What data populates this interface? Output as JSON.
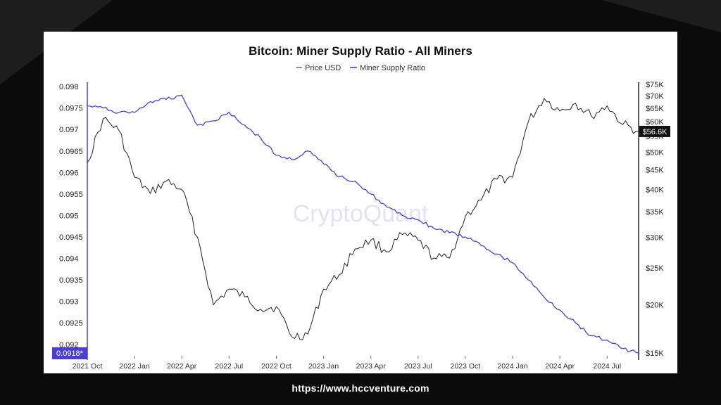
{
  "footer": {
    "url": "https://www.hccventure.com"
  },
  "watermark": "CryptoQuant",
  "colors": {
    "price": "#222222",
    "ratio": "#4b3fd0",
    "grid": "#e5e5e5",
    "background": "#0b0b0b"
  },
  "chart_data": {
    "type": "line",
    "title": "Bitcoin: Miner Supply Ratio - All Miners",
    "legend": [
      "Price USD",
      "Miner Supply Ratio"
    ],
    "legend_position": "top-center",
    "grid": false,
    "x_ticks": [
      "2021 Oct",
      "2022 Jan",
      "2022 Apr",
      "2022 Jul",
      "2022 Oct",
      "2023 Jan",
      "2023 Apr",
      "2023 Jul",
      "2023 Oct",
      "2024 Jan",
      "2024 Apr",
      "2024 Jul"
    ],
    "y_left_ticks": [
      "0.098",
      "0.0975",
      "0.097",
      "0.0965",
      "0.096",
      "0.0955",
      "0.095",
      "0.0945",
      "0.094",
      "0.0935",
      "0.093",
      "0.0925",
      "0.092"
    ],
    "y_left_range": [
      0.0918,
      0.0981
    ],
    "y_right_ticks": [
      "$75K",
      "$70K",
      "$65K",
      "$60K",
      "$55K",
      "$50K",
      "$45K",
      "$40K",
      "$35K",
      "$30K",
      "$25K",
      "$20K",
      "$15K"
    ],
    "y_right_scale": "log",
    "y_right_range": [
      15000,
      76000
    ],
    "current_labels": {
      "price": "$56.6K",
      "ratio": "0.0918*"
    },
    "series": [
      {
        "name": "Price USD",
        "axis": "right",
        "points": [
          [
            "2021 Oct",
            47000
          ],
          [
            "2021 Nov",
            61000
          ],
          [
            "2021 Dec",
            57000
          ],
          [
            "2022 Jan",
            43000
          ],
          [
            "2022 Feb",
            39000
          ],
          [
            "2022 Mar",
            42000
          ],
          [
            "2022 Apr",
            40000
          ],
          [
            "2022 May",
            30000
          ],
          [
            "2022 Jun",
            20000
          ],
          [
            "2022 Jul",
            22000
          ],
          [
            "2022 Aug",
            21000
          ],
          [
            "2022 Sep",
            19500
          ],
          [
            "2022 Oct",
            19800
          ],
          [
            "2022 Nov",
            16500
          ],
          [
            "2022 Dec",
            16800
          ],
          [
            "2023 Jan",
            22000
          ],
          [
            "2023 Feb",
            24000
          ],
          [
            "2023 Mar",
            28000
          ],
          [
            "2023 Apr",
            29500
          ],
          [
            "2023 May",
            27500
          ],
          [
            "2023 Jun",
            30500
          ],
          [
            "2023 Jul",
            29500
          ],
          [
            "2023 Aug",
            26500
          ],
          [
            "2023 Sep",
            26500
          ],
          [
            "2023 Oct",
            34000
          ],
          [
            "2023 Nov",
            37500
          ],
          [
            "2023 Dec",
            42500
          ],
          [
            "2024 Jan",
            43000
          ],
          [
            "2024 Feb",
            60000
          ],
          [
            "2024 Mar",
            69000
          ],
          [
            "2024 Apr",
            64000
          ],
          [
            "2024 May",
            67000
          ],
          [
            "2024 Jun",
            62000
          ],
          [
            "2024 Jul",
            66000
          ],
          [
            "2024 Aug",
            59000
          ],
          [
            "2024 Sep",
            56600
          ]
        ]
      },
      {
        "name": "Miner Supply Ratio",
        "axis": "left",
        "points": [
          [
            "2021 Oct",
            0.09755
          ],
          [
            "2021 Nov",
            0.0975
          ],
          [
            "2021 Dec",
            0.0974
          ],
          [
            "2022 Jan",
            0.0974
          ],
          [
            "2022 Feb",
            0.09765
          ],
          [
            "2022 Mar",
            0.0977
          ],
          [
            "2022 Apr",
            0.0978
          ],
          [
            "2022 May",
            0.0971
          ],
          [
            "2022 Jun",
            0.0972
          ],
          [
            "2022 Jul",
            0.0974
          ],
          [
            "2022 Aug",
            0.0971
          ],
          [
            "2022 Sep",
            0.0968
          ],
          [
            "2022 Oct",
            0.0964
          ],
          [
            "2022 Nov",
            0.0963
          ],
          [
            "2022 Dec",
            0.0965
          ],
          [
            "2023 Jan",
            0.0962
          ],
          [
            "2023 Feb",
            0.0959
          ],
          [
            "2023 Mar",
            0.0958
          ],
          [
            "2023 Apr",
            0.0955
          ],
          [
            "2023 May",
            0.0952
          ],
          [
            "2023 Jun",
            0.095
          ],
          [
            "2023 Jul",
            0.0949
          ],
          [
            "2023 Aug",
            0.0947
          ],
          [
            "2023 Sep",
            0.0946
          ],
          [
            "2023 Oct",
            0.0945
          ],
          [
            "2023 Nov",
            0.0943
          ],
          [
            "2023 Dec",
            0.0941
          ],
          [
            "2024 Jan",
            0.0939
          ],
          [
            "2024 Feb",
            0.0935
          ],
          [
            "2024 Mar",
            0.0931
          ],
          [
            "2024 Apr",
            0.0928
          ],
          [
            "2024 May",
            0.0925
          ],
          [
            "2024 Jun",
            0.0922
          ],
          [
            "2024 Jul",
            0.0921
          ],
          [
            "2024 Aug",
            0.0919
          ],
          [
            "2024 Sep",
            0.0918
          ]
        ]
      }
    ]
  }
}
